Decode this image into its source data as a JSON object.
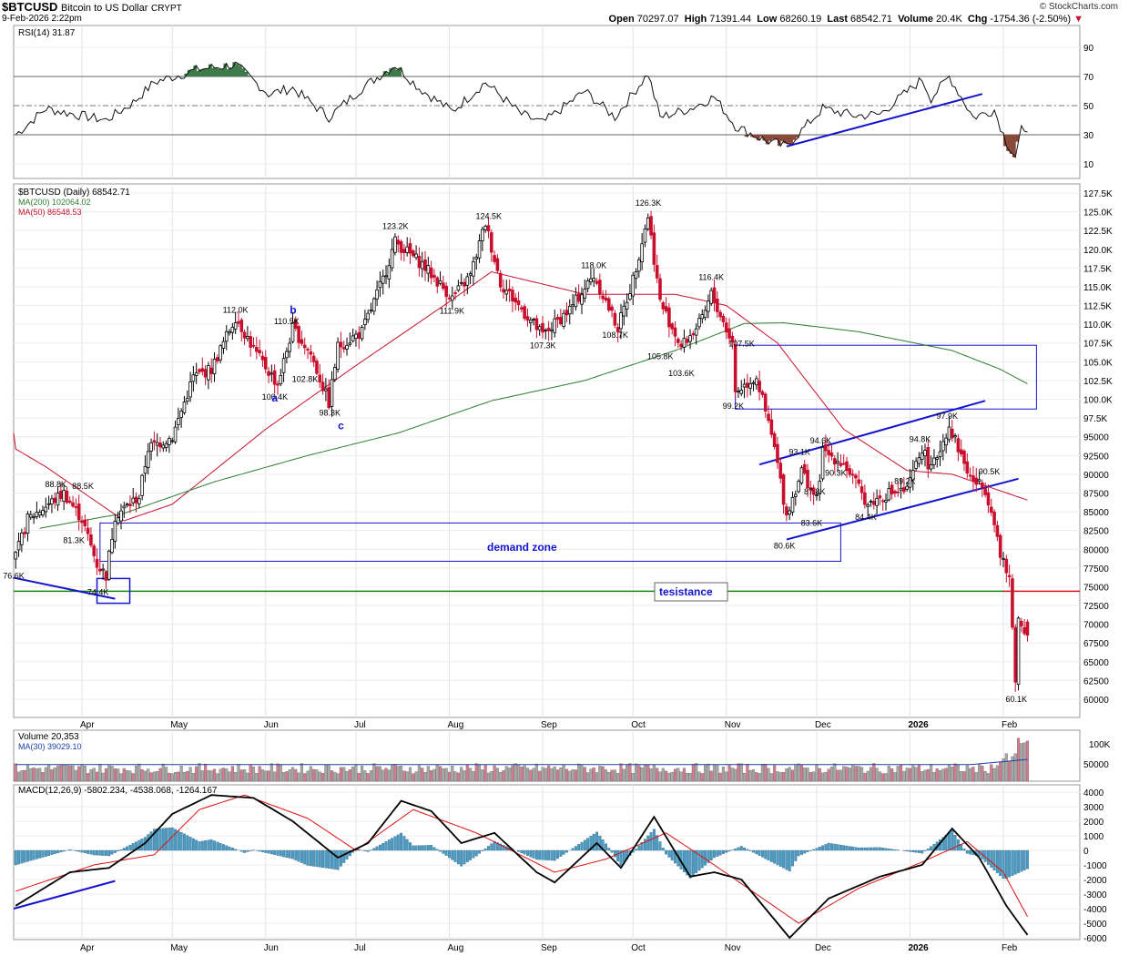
{
  "header": {
    "symbol": "$BTCUSD",
    "name": "Bitcoin to US Dollar",
    "exchange": "CRYPT",
    "date": "9-Feb-2026 2:22pm",
    "brand": "© StockCharts.com",
    "open_label": "Open",
    "open": "70297.07",
    "high_label": "High",
    "high": "71391.44",
    "low_label": "Low",
    "low": "68260.19",
    "last_label": "Last",
    "last": "68542.71",
    "volume_label": "Volume",
    "volume": "20.4K",
    "chg_label": "Chg",
    "chg": "-1754.36 (-2.50%)"
  },
  "colors": {
    "up": "#000000",
    "down": "#c8102e",
    "ma200": "#2e7d32",
    "ma50": "#c8102e",
    "hist": "#4a9cc4",
    "annot": "#1414cc",
    "rsi_green": "#3f7a4a",
    "rsi_red": "#8a4a3a"
  },
  "chart_data": [
    {
      "panel": "rsi",
      "type": "line",
      "title": "RSI(14) 31.87",
      "yticks": [
        90,
        70,
        50,
        30,
        10
      ],
      "levels": [
        70,
        50,
        30
      ],
      "ylim": [
        0,
        100
      ],
      "anchors": [
        {
          "x": "2025-03-10",
          "y": 30
        },
        {
          "x": "2025-03-20",
          "y": 48
        },
        {
          "x": "2025-04-01",
          "y": 43
        },
        {
          "x": "2025-04-09",
          "y": 40
        },
        {
          "x": "2025-04-18",
          "y": 52
        },
        {
          "x": "2025-04-25",
          "y": 66
        },
        {
          "x": "2025-05-10",
          "y": 75
        },
        {
          "x": "2025-05-22",
          "y": 78
        },
        {
          "x": "2025-06-02",
          "y": 58
        },
        {
          "x": "2025-06-10",
          "y": 62
        },
        {
          "x": "2025-06-22",
          "y": 42
        },
        {
          "x": "2025-07-03",
          "y": 62
        },
        {
          "x": "2025-07-14",
          "y": 78
        },
        {
          "x": "2025-07-22",
          "y": 62
        },
        {
          "x": "2025-08-02",
          "y": 46
        },
        {
          "x": "2025-08-13",
          "y": 66
        },
        {
          "x": "2025-08-25",
          "y": 44
        },
        {
          "x": "2025-09-01",
          "y": 38
        },
        {
          "x": "2025-09-15",
          "y": 60
        },
        {
          "x": "2025-09-25",
          "y": 42
        },
        {
          "x": "2025-10-06",
          "y": 72
        },
        {
          "x": "2025-10-10",
          "y": 42
        },
        {
          "x": "2025-10-20",
          "y": 48
        },
        {
          "x": "2025-10-28",
          "y": 56
        },
        {
          "x": "2025-11-04",
          "y": 36
        },
        {
          "x": "2025-11-14",
          "y": 26
        },
        {
          "x": "2025-11-21",
          "y": 22
        },
        {
          "x": "2025-12-03",
          "y": 48
        },
        {
          "x": "2025-12-14",
          "y": 43
        },
        {
          "x": "2025-12-22",
          "y": 44
        },
        {
          "x": "2026-01-05",
          "y": 68
        },
        {
          "x": "2026-01-08",
          "y": 55
        },
        {
          "x": "2026-01-14",
          "y": 70
        },
        {
          "x": "2026-01-22",
          "y": 42
        },
        {
          "x": "2026-01-29",
          "y": 47
        },
        {
          "x": "2026-02-02",
          "y": 25
        },
        {
          "x": "2026-02-05",
          "y": 15
        },
        {
          "x": "2026-02-07",
          "y": 33
        },
        {
          "x": "2026-02-09",
          "y": 31.87
        }
      ]
    },
    {
      "panel": "price",
      "type": "candlestick",
      "title": "$BTCUSD (Daily) 68542.71",
      "series": [
        {
          "name": "MA(200) 102064.02"
        },
        {
          "name": "MA(50) 86548.53"
        }
      ],
      "yticks": [
        "127.5K",
        "125.0K",
        "122.5K",
        "120.0K",
        "117.5K",
        "115.0K",
        "112.5K",
        "110.0K",
        "107.5K",
        "105.0K",
        "102.5K",
        "100.0K",
        "97.5K",
        "95000",
        "92500",
        "90000",
        "87500",
        "85000",
        "82500",
        "80000",
        "77500",
        "75000",
        "72500",
        "70000",
        "67500",
        "65000",
        "62500",
        "60000"
      ],
      "ylim": [
        57500,
        128500
      ],
      "xticks": [
        "Apr",
        "May",
        "Jun",
        "Jul",
        "Aug",
        "Sep",
        "Oct",
        "Nov",
        "Dec",
        "2026",
        "Feb"
      ],
      "close_anchors": [
        {
          "x": "2025-03-10",
          "y": 79000
        },
        {
          "x": "2025-03-14",
          "y": 84000
        },
        {
          "x": "2025-03-26",
          "y": 87500
        },
        {
          "x": "2025-04-01",
          "y": 84000
        },
        {
          "x": "2025-04-06",
          "y": 78000
        },
        {
          "x": "2025-04-09",
          "y": 76500
        },
        {
          "x": "2025-04-12",
          "y": 84500
        },
        {
          "x": "2025-04-20",
          "y": 87000
        },
        {
          "x": "2025-04-23",
          "y": 93500
        },
        {
          "x": "2025-05-01",
          "y": 95000
        },
        {
          "x": "2025-05-08",
          "y": 103000
        },
        {
          "x": "2025-05-14",
          "y": 104000
        },
        {
          "x": "2025-05-22",
          "y": 111000
        },
        {
          "x": "2025-05-29",
          "y": 106000
        },
        {
          "x": "2025-06-05",
          "y": 102000
        },
        {
          "x": "2025-06-10",
          "y": 109500
        },
        {
          "x": "2025-06-16",
          "y": 106000
        },
        {
          "x": "2025-06-22",
          "y": 99500
        },
        {
          "x": "2025-06-25",
          "y": 107000
        },
        {
          "x": "2025-07-03",
          "y": 109000
        },
        {
          "x": "2025-07-10",
          "y": 116000
        },
        {
          "x": "2025-07-14",
          "y": 121000
        },
        {
          "x": "2025-07-23",
          "y": 118000
        },
        {
          "x": "2025-08-02",
          "y": 113500
        },
        {
          "x": "2025-08-08",
          "y": 116500
        },
        {
          "x": "2025-08-13",
          "y": 123500
        },
        {
          "x": "2025-08-18",
          "y": 115500
        },
        {
          "x": "2025-08-25",
          "y": 112000
        },
        {
          "x": "2025-09-01",
          "y": 108500
        },
        {
          "x": "2025-09-10",
          "y": 112000
        },
        {
          "x": "2025-09-18",
          "y": 116500
        },
        {
          "x": "2025-09-26",
          "y": 109500
        },
        {
          "x": "2025-10-01",
          "y": 116000
        },
        {
          "x": "2025-10-06",
          "y": 124500
        },
        {
          "x": "2025-10-10",
          "y": 113000
        },
        {
          "x": "2025-10-17",
          "y": 107000
        },
        {
          "x": "2025-10-24",
          "y": 110500
        },
        {
          "x": "2025-10-27",
          "y": 114000
        },
        {
          "x": "2025-11-03",
          "y": 107500
        },
        {
          "x": "2025-11-04",
          "y": 101000
        },
        {
          "x": "2025-11-11",
          "y": 103000
        },
        {
          "x": "2025-11-17",
          "y": 93500
        },
        {
          "x": "2025-11-21",
          "y": 84500
        },
        {
          "x": "2025-11-26",
          "y": 90500
        },
        {
          "x": "2025-12-01",
          "y": 86500
        },
        {
          "x": "2025-12-03",
          "y": 93000
        },
        {
          "x": "2025-12-10",
          "y": 91500
        },
        {
          "x": "2025-12-18",
          "y": 86000
        },
        {
          "x": "2025-12-25",
          "y": 87500
        },
        {
          "x": "2025-12-31",
          "y": 87800
        },
        {
          "x": "2026-01-05",
          "y": 93500
        },
        {
          "x": "2026-01-08",
          "y": 90500
        },
        {
          "x": "2026-01-14",
          "y": 96500
        },
        {
          "x": "2026-01-21",
          "y": 89500
        },
        {
          "x": "2026-01-26",
          "y": 88000
        },
        {
          "x": "2026-01-29",
          "y": 84000
        },
        {
          "x": "2026-01-31",
          "y": 79000
        },
        {
          "x": "2026-02-03",
          "y": 76000
        },
        {
          "x": "2026-02-05",
          "y": 63000
        },
        {
          "x": "2026-02-06",
          "y": 70500
        },
        {
          "x": "2026-02-09",
          "y": 68542.71
        }
      ],
      "ma200_anchors": [
        {
          "x": "2025-03-18",
          "y": 82800
        },
        {
          "x": "2025-04-15",
          "y": 84800
        },
        {
          "x": "2025-05-15",
          "y": 89000
        },
        {
          "x": "2025-06-15",
          "y": 92500
        },
        {
          "x": "2025-07-15",
          "y": 95500
        },
        {
          "x": "2025-08-15",
          "y": 99800
        },
        {
          "x": "2025-09-15",
          "y": 102500
        },
        {
          "x": "2025-10-15",
          "y": 106500
        },
        {
          "x": "2025-11-07",
          "y": 110100
        },
        {
          "x": "2025-11-20",
          "y": 110200
        },
        {
          "x": "2025-12-15",
          "y": 109000
        },
        {
          "x": "2026-01-15",
          "y": 106500
        },
        {
          "x": "2026-01-31",
          "y": 104000
        },
        {
          "x": "2026-02-09",
          "y": 102064.02
        }
      ],
      "ma50_anchors": [
        {
          "x": "2025-03-01",
          "y": 95500
        },
        {
          "x": "2025-03-20",
          "y": 91000
        },
        {
          "x": "2025-04-15",
          "y": 83800
        },
        {
          "x": "2025-05-01",
          "y": 86000
        },
        {
          "x": "2025-06-01",
          "y": 96000
        },
        {
          "x": "2025-07-01",
          "y": 104500
        },
        {
          "x": "2025-08-01",
          "y": 113000
        },
        {
          "x": "2025-08-15",
          "y": 117000
        },
        {
          "x": "2025-09-15",
          "y": 114000
        },
        {
          "x": "2025-10-15",
          "y": 114000
        },
        {
          "x": "2025-11-01",
          "y": 112500
        },
        {
          "x": "2025-11-18",
          "y": 107500
        },
        {
          "x": "2025-12-10",
          "y": 96000
        },
        {
          "x": "2025-12-31",
          "y": 90500
        },
        {
          "x": "2026-01-15",
          "y": 90000
        },
        {
          "x": "2026-02-09",
          "y": 86548.53
        }
      ],
      "price_labels": [
        {
          "x": "2025-03-10",
          "y": 76600,
          "text": "76.6K"
        },
        {
          "x": "2025-03-24",
          "y": 88800,
          "text": "88.8K"
        },
        {
          "x": "2025-04-02",
          "y": 88500,
          "text": "88.5K"
        },
        {
          "x": "2025-03-30",
          "y": 81300,
          "text": "81.3K"
        },
        {
          "x": "2025-04-07",
          "y": 74400,
          "text": "74.4K"
        },
        {
          "x": "2025-05-22",
          "y": 112000,
          "text": "112.0K"
        },
        {
          "x": "2025-06-08",
          "y": 110500,
          "text": "110.5K"
        },
        {
          "x": "2025-06-04",
          "y": 100400,
          "text": "100.4K"
        },
        {
          "x": "2025-06-14",
          "y": 102800,
          "text": "102.8K"
        },
        {
          "x": "2025-06-23",
          "y": 98300,
          "text": "98.3K"
        },
        {
          "x": "2025-07-14",
          "y": 123200,
          "text": "123.2K"
        },
        {
          "x": "2025-08-02",
          "y": 111900,
          "text": "111.9K"
        },
        {
          "x": "2025-08-14",
          "y": 124500,
          "text": "124.5K"
        },
        {
          "x": "2025-09-01",
          "y": 107300,
          "text": "107.3K"
        },
        {
          "x": "2025-09-18",
          "y": 118000,
          "text": "118.0K"
        },
        {
          "x": "2025-09-25",
          "y": 108700,
          "text": "108.7K"
        },
        {
          "x": "2025-10-06",
          "y": 126300,
          "text": "126.3K"
        },
        {
          "x": "2025-10-10",
          "y": 105800,
          "text": "105.8K"
        },
        {
          "x": "2025-10-17",
          "y": 103600,
          "text": "103.6K"
        },
        {
          "x": "2025-10-27",
          "y": 116400,
          "text": "116.4K"
        },
        {
          "x": "2025-11-04",
          "y": 99200,
          "text": "99.2K"
        },
        {
          "x": "2025-11-06",
          "y": 107500,
          "text": "107.5K"
        },
        {
          "x": "2025-11-21",
          "y": 80600,
          "text": "80.6K"
        },
        {
          "x": "2025-11-26",
          "y": 93100,
          "text": "93.1K"
        },
        {
          "x": "2025-12-01",
          "y": 87800,
          "text": "87.8K"
        },
        {
          "x": "2025-11-30",
          "y": 83600,
          "text": "83.6K"
        },
        {
          "x": "2025-12-03",
          "y": 94600,
          "text": "94.6K"
        },
        {
          "x": "2025-12-08",
          "y": 90300,
          "text": "90.3K"
        },
        {
          "x": "2025-12-18",
          "y": 84400,
          "text": "84.4K"
        },
        {
          "x": "2025-12-31",
          "y": 89200,
          "text": "89.2K"
        },
        {
          "x": "2026-01-05",
          "y": 94800,
          "text": "94.8K"
        },
        {
          "x": "2026-01-14",
          "y": 97900,
          "text": "97.9K"
        },
        {
          "x": "2026-01-28",
          "y": 90500,
          "text": "90.5K"
        },
        {
          "x": "2026-02-06",
          "y": 60100,
          "text": "60.1K"
        }
      ],
      "wave_labels": [
        {
          "x": "2025-06-03",
          "y": 99700,
          "text": "a"
        },
        {
          "x": "2025-06-09",
          "y": 111400,
          "text": "b"
        },
        {
          "x": "2025-06-25",
          "y": 96000,
          "text": "c"
        }
      ],
      "annotations": {
        "demand_zone": "demand zone",
        "resistance": "tesistance",
        "resistance_level": 74400,
        "zone_top": 83500,
        "zone_bottom": 78400,
        "supply_top": 107200,
        "supply_bottom": 98700
      }
    },
    {
      "panel": "volume",
      "type": "bar",
      "title": "Volume 20,353",
      "series": [
        {
          "name": "MA(30) 39029.10"
        }
      ],
      "yticks": [
        "100K",
        "50000"
      ]
    },
    {
      "panel": "macd",
      "type": "line",
      "title": "MACD(12,26,9) -5802.234, -4538.068, -1264.167",
      "yticks": [
        4000,
        3000,
        2000,
        1000,
        0,
        -1000,
        -2000,
        -3000,
        -4000,
        -5000,
        -6000
      ],
      "ylim": [
        -6200,
        4200
      ],
      "macd_anchors": [
        {
          "x": "2025-03-10",
          "y": -3800
        },
        {
          "x": "2025-03-28",
          "y": -1500
        },
        {
          "x": "2025-04-10",
          "y": -1200
        },
        {
          "x": "2025-04-22",
          "y": 500
        },
        {
          "x": "2025-05-01",
          "y": 2500
        },
        {
          "x": "2025-05-14",
          "y": 3800
        },
        {
          "x": "2025-05-28",
          "y": 3600
        },
        {
          "x": "2025-06-10",
          "y": 2000
        },
        {
          "x": "2025-06-25",
          "y": -500
        },
        {
          "x": "2025-07-05",
          "y": 500
        },
        {
          "x": "2025-07-16",
          "y": 3400
        },
        {
          "x": "2025-07-26",
          "y": 2700
        },
        {
          "x": "2025-08-05",
          "y": 500
        },
        {
          "x": "2025-08-16",
          "y": 1200
        },
        {
          "x": "2025-08-30",
          "y": -1500
        },
        {
          "x": "2025-09-05",
          "y": -2200
        },
        {
          "x": "2025-09-19",
          "y": 500
        },
        {
          "x": "2025-09-27",
          "y": -1200
        },
        {
          "x": "2025-10-08",
          "y": 2300
        },
        {
          "x": "2025-10-20",
          "y": -1800
        },
        {
          "x": "2025-10-28",
          "y": -1500
        },
        {
          "x": "2025-11-06",
          "y": -2000
        },
        {
          "x": "2025-11-22",
          "y": -6000
        },
        {
          "x": "2025-12-05",
          "y": -3300
        },
        {
          "x": "2025-12-22",
          "y": -1800
        },
        {
          "x": "2026-01-05",
          "y": -1000
        },
        {
          "x": "2026-01-15",
          "y": 1500
        },
        {
          "x": "2026-01-24",
          "y": -500
        },
        {
          "x": "2026-02-02",
          "y": -3800
        },
        {
          "x": "2026-02-09",
          "y": -5802.234
        }
      ],
      "signal_anchors": [
        {
          "x": "2025-03-10",
          "y": -2800
        },
        {
          "x": "2025-04-05",
          "y": -1000
        },
        {
          "x": "2025-04-25",
          "y": -300
        },
        {
          "x": "2025-05-10",
          "y": 2800
        },
        {
          "x": "2025-05-25",
          "y": 3800
        },
        {
          "x": "2025-06-15",
          "y": 2200
        },
        {
          "x": "2025-07-01",
          "y": 0
        },
        {
          "x": "2025-07-20",
          "y": 2800
        },
        {
          "x": "2025-08-10",
          "y": 1200
        },
        {
          "x": "2025-09-05",
          "y": -1500
        },
        {
          "x": "2025-09-22",
          "y": -600
        },
        {
          "x": "2025-10-12",
          "y": 1200
        },
        {
          "x": "2025-10-28",
          "y": -1000
        },
        {
          "x": "2025-11-25",
          "y": -5000
        },
        {
          "x": "2025-12-15",
          "y": -2600
        },
        {
          "x": "2026-01-05",
          "y": -800
        },
        {
          "x": "2026-01-20",
          "y": 600
        },
        {
          "x": "2026-02-01",
          "y": -1500
        },
        {
          "x": "2026-02-09",
          "y": -4538.068
        }
      ]
    }
  ]
}
